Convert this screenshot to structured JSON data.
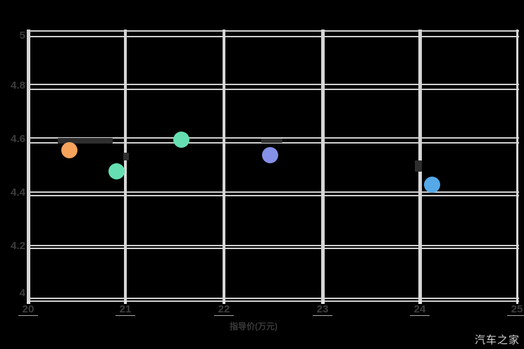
{
  "chart_data": {
    "type": "scatter",
    "title": "",
    "xlabel": "指导价(万元)",
    "ylabel": "",
    "xlim": [
      20,
      25
    ],
    "ylim": [
      4,
      5
    ],
    "grid": true,
    "legend": "none",
    "x_ticks": [
      "20",
      "21",
      "22",
      "23",
      "24",
      "25"
    ],
    "y_ticks": [
      "5",
      "4.8",
      "4.6",
      "4.4",
      "4.2",
      "4"
    ],
    "y_tick_values": [
      5,
      4.8,
      4.6,
      4.4,
      4.2,
      4
    ],
    "x_tick_values": [
      20,
      21,
      22,
      23,
      24,
      25
    ],
    "points": [
      {
        "name": "orange-point",
        "x": 20.42,
        "y": 4.57,
        "color": "#f7a35c"
      },
      {
        "name": "teal-point-1",
        "x": 20.9,
        "y": 4.49,
        "color": "#66e0b2"
      },
      {
        "name": "teal-point-2",
        "x": 21.56,
        "y": 4.61,
        "color": "#66e0b2"
      },
      {
        "name": "purple-point",
        "x": 22.47,
        "y": 4.55,
        "color": "#8590e8"
      },
      {
        "name": "blue-point",
        "x": 24.13,
        "y": 4.44,
        "color": "#55a9e8"
      }
    ]
  },
  "watermark": "汽车之家",
  "colors": {
    "background": "#000000",
    "gridline": "#cfcfcf",
    "tick_text": "#3d3d3d",
    "watermark_text": "#cfcfcf"
  }
}
